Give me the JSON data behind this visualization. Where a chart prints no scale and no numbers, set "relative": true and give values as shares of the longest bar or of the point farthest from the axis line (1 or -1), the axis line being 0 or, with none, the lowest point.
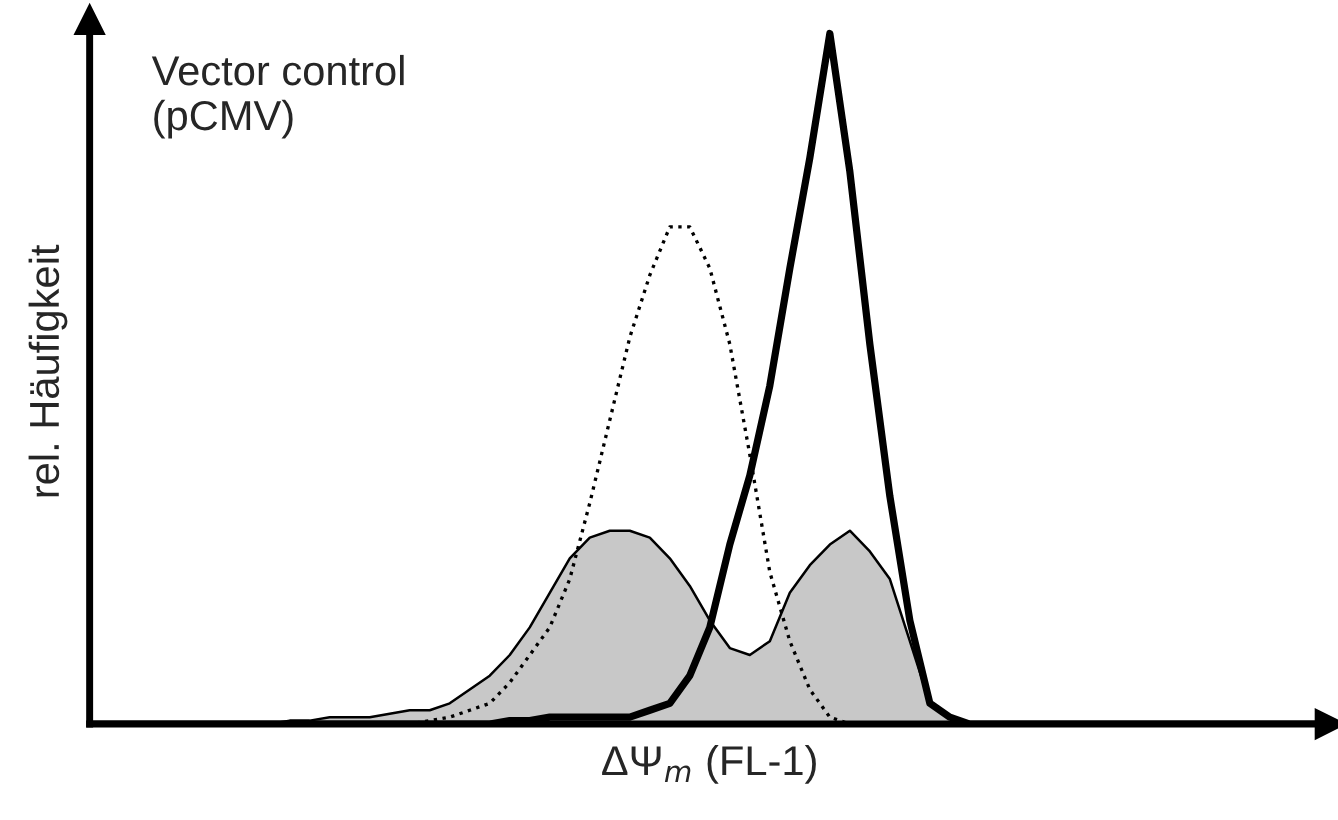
{
  "chart_data": {
    "type": "line",
    "relative": true,
    "xlabel": "ΔΨ$_{m}$ (FL-1)",
    "ylabel": "rel. Häufigkeit",
    "annotations": [
      "Vector control\n(pCMV)"
    ],
    "categories": [
      null,
      null,
      null,
      null,
      null,
      null,
      null,
      null,
      null,
      null,
      null,
      null,
      null,
      null,
      null,
      null,
      null,
      null,
      null,
      null,
      null,
      null,
      null,
      null,
      null,
      null,
      null,
      null,
      null,
      null,
      null,
      null,
      null,
      null,
      null,
      null,
      null,
      null,
      null,
      null,
      null,
      null,
      null,
      null,
      null,
      null,
      null,
      null,
      null,
      null,
      null,
      null,
      null,
      null,
      null,
      null,
      null,
      null,
      null,
      null,
      null,
      null,
      null
    ],
    "series": [
      {
        "type": "area",
        "color": "#c8c8c8",
        "line_style": "solid",
        "values": [
          0,
          0,
          0,
          0,
          0,
          0,
          0,
          0,
          0,
          0,
          0.005,
          0.005,
          0.01,
          0.01,
          0.01,
          0.015,
          0.02,
          0.02,
          0.03,
          0.05,
          0.07,
          0.1,
          0.14,
          0.19,
          0.24,
          0.27,
          0.28,
          0.28,
          0.27,
          0.24,
          0.2,
          0.15,
          0.11,
          0.1,
          0.12,
          0.19,
          0.23,
          0.26,
          0.28,
          0.25,
          0.21,
          0.12,
          0.03,
          0.01,
          0,
          0,
          0,
          0,
          0,
          0,
          0,
          0,
          0,
          0,
          0,
          0,
          0,
          0,
          0,
          0,
          0,
          0,
          0
        ]
      },
      {
        "color": "#000000",
        "line_style": "dotted",
        "values": [
          0,
          0,
          0,
          0,
          0,
          0,
          0,
          0,
          0,
          0,
          0,
          0,
          0,
          0,
          0,
          0,
          0,
          0.005,
          0.01,
          0.02,
          0.03,
          0.06,
          0.1,
          0.14,
          0.21,
          0.32,
          0.44,
          0.56,
          0.65,
          0.72,
          0.72,
          0.66,
          0.55,
          0.39,
          0.22,
          0.12,
          0.05,
          0.01,
          0,
          0,
          0,
          0,
          0,
          0,
          0,
          0,
          0,
          0,
          0,
          0,
          0,
          0,
          0,
          0,
          0,
          0,
          0,
          0,
          0,
          0,
          0,
          0,
          0
        ]
      },
      {
        "color": "#000000",
        "line_style": "solid",
        "values": [
          0,
          0,
          0,
          0,
          0,
          0,
          0,
          0,
          0,
          0,
          0,
          0,
          0,
          0,
          0,
          0,
          0,
          0,
          0,
          0,
          0,
          0.005,
          0.005,
          0.01,
          0.01,
          0.01,
          0.01,
          0.01,
          0.02,
          0.03,
          0.07,
          0.14,
          0.26,
          0.36,
          0.49,
          0.66,
          0.82,
          1.0,
          0.8,
          0.55,
          0.33,
          0.15,
          0.03,
          0.01,
          0,
          0,
          0,
          0,
          0,
          0,
          0,
          0,
          0,
          0,
          0,
          0,
          0,
          0,
          0,
          0,
          0,
          0,
          0
        ]
      }
    ],
    "grid": false,
    "legend": false
  }
}
